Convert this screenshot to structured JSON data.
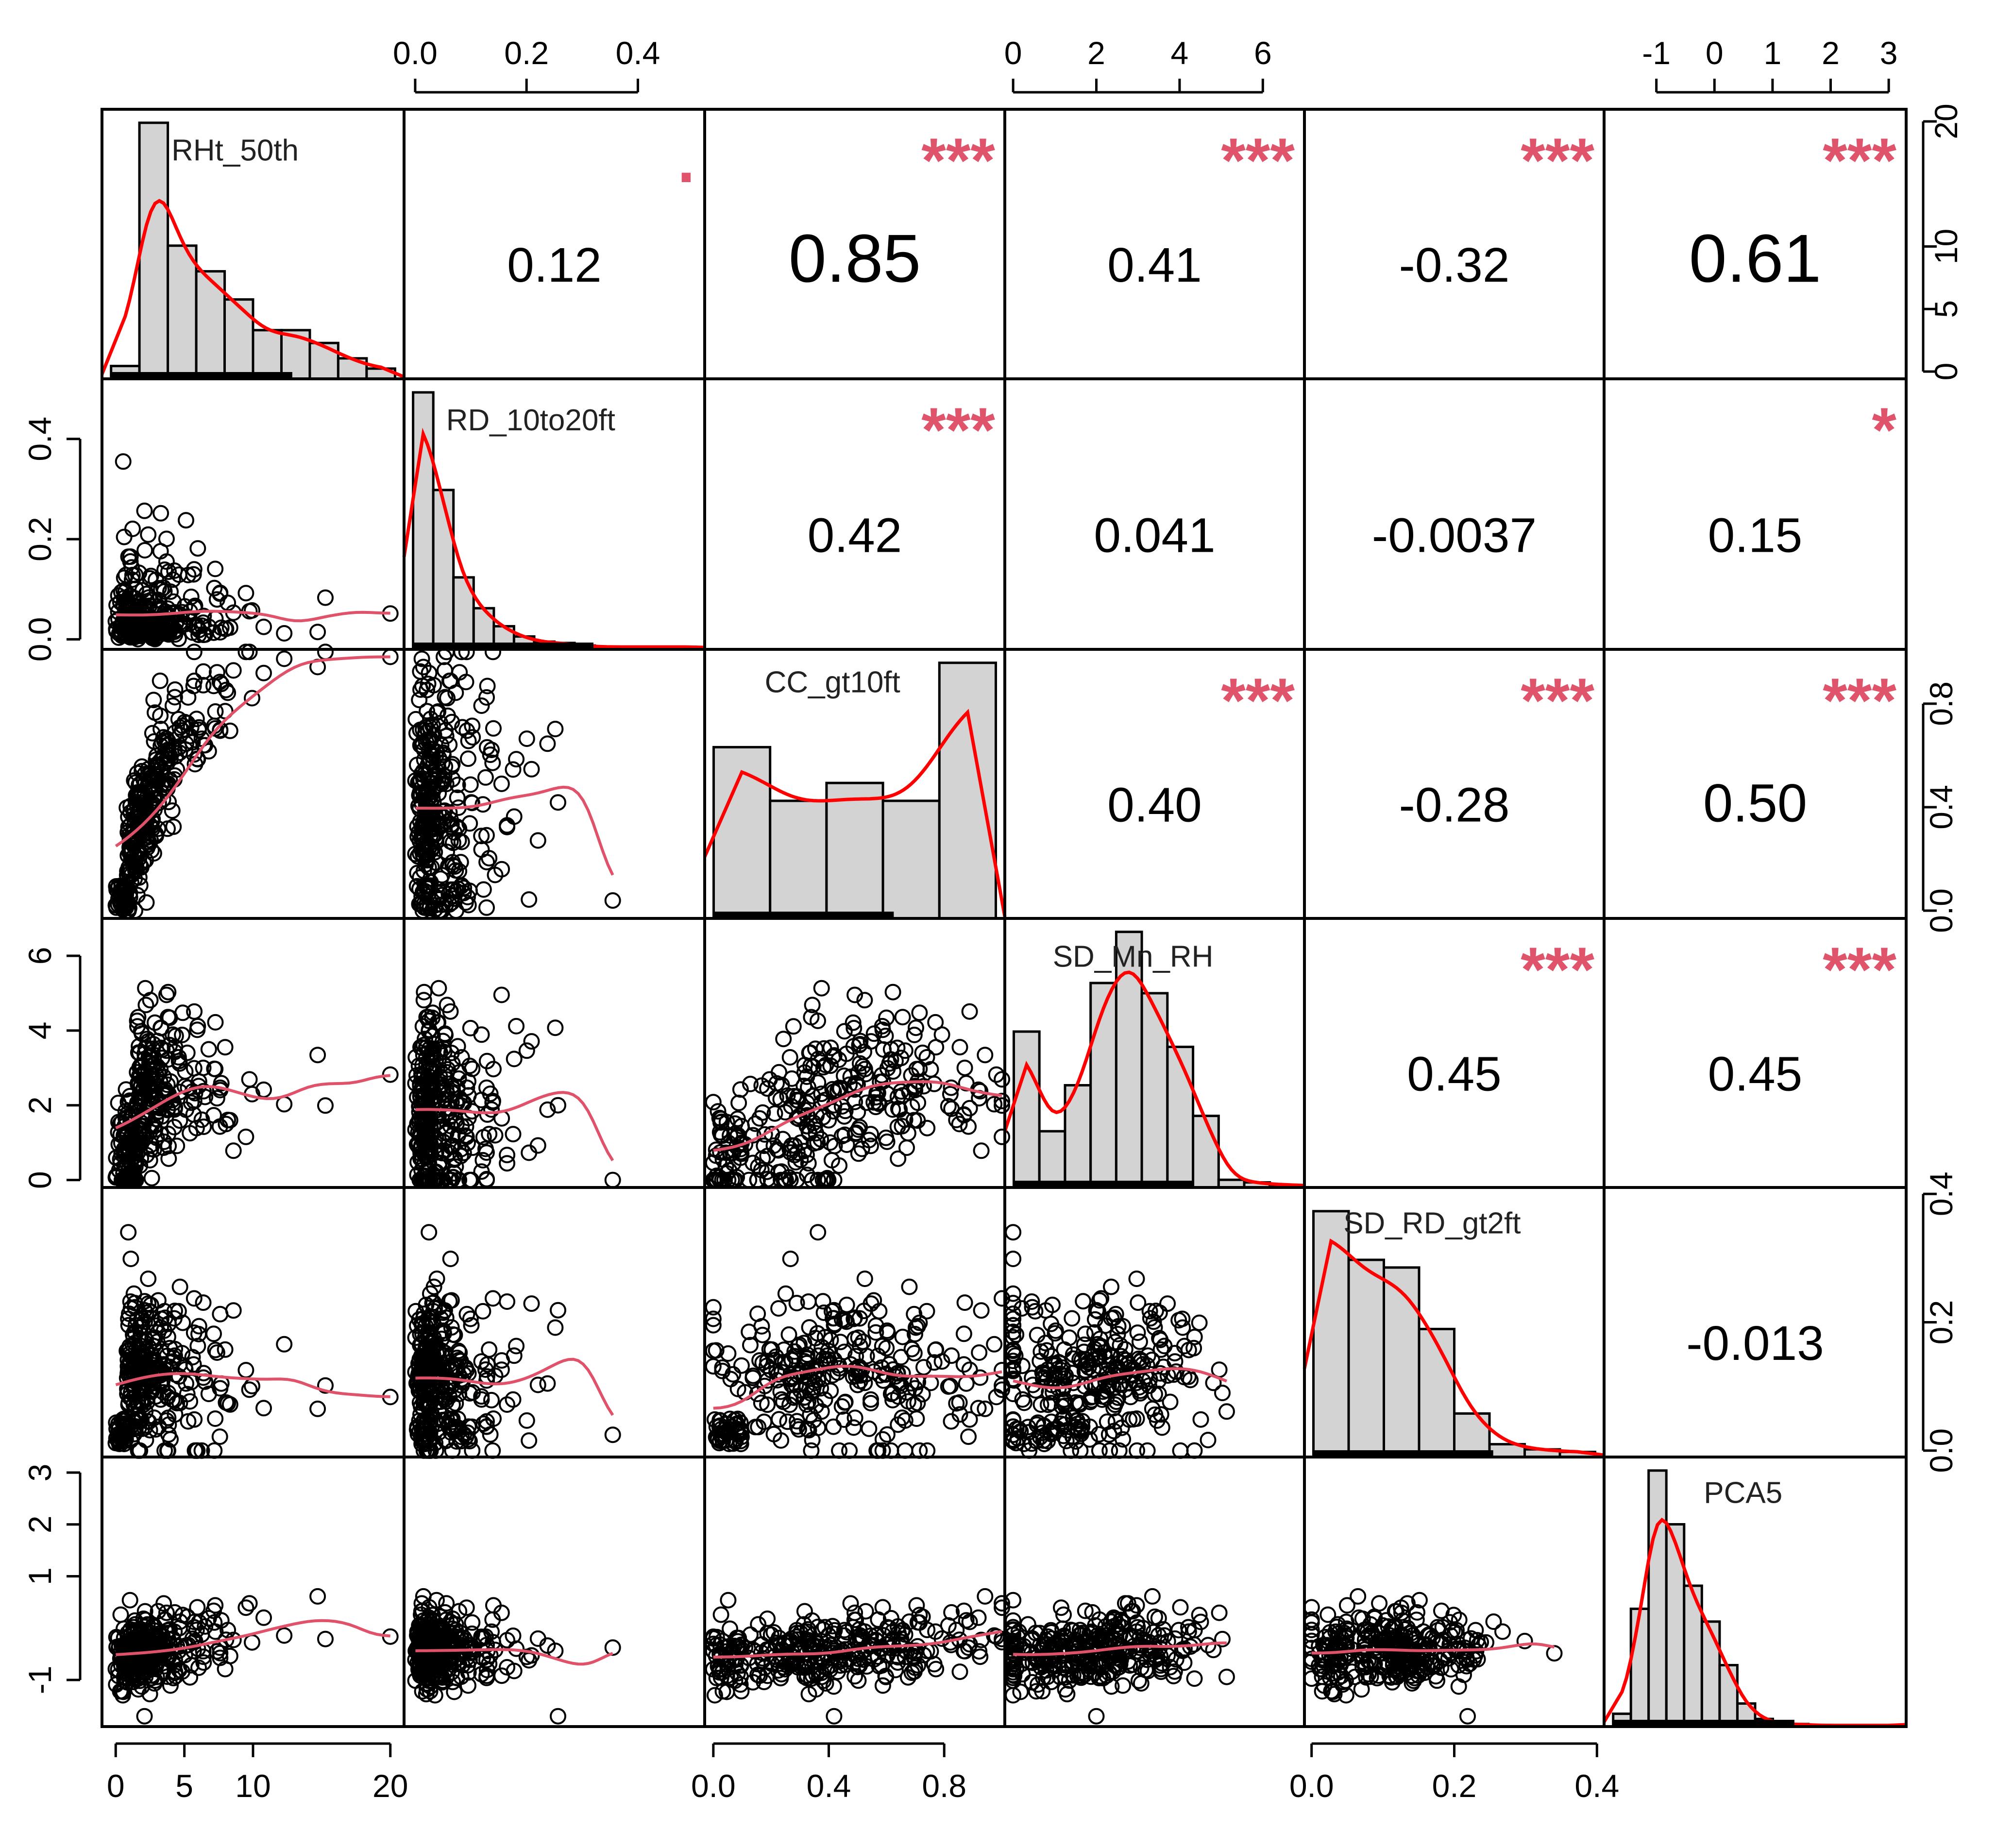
{
  "chart_data": {
    "type": "scatter-matrix",
    "title": "",
    "variables": [
      "RHt_50th",
      "RD_10to20ft",
      "CC_gt10ft",
      "SD_Mn_RH",
      "SD_RD_gt2ft",
      "PCA5"
    ],
    "ranges": [
      [
        -1,
        21
      ],
      [
        -0.02,
        0.52
      ],
      [
        -0.03,
        1.01
      ],
      [
        -0.2,
        7.0
      ],
      [
        -0.01,
        0.41
      ],
      [
        -1.9,
        3.3
      ]
    ],
    "ticks": {
      "bottom_col0": [
        "0",
        "5",
        "10",
        "20"
      ],
      "top_col1": [
        "0.0",
        "0.2",
        "0.4"
      ],
      "bottom_col2": [
        "0.0",
        "0.4",
        "0.8"
      ],
      "top_col3": [
        "0",
        "2",
        "4",
        "6"
      ],
      "bottom_col4": [
        "0.0",
        "0.2",
        "0.4"
      ],
      "top_col5": [
        "-1",
        "0",
        "1",
        "2",
        "3"
      ],
      "left_row1": [
        "0.0",
        "0.2",
        "0.4"
      ],
      "left_row3": [
        "0",
        "2",
        "4",
        "6"
      ],
      "left_row5": [
        "-1",
        "1",
        "2",
        "3"
      ],
      "right_row0": [
        "0",
        "5",
        "10",
        "20"
      ],
      "right_row2": [
        "0.0",
        "0.4",
        "0.8"
      ],
      "right_row4": [
        "0.0",
        "0.2",
        "0.4"
      ]
    },
    "histograms": [
      [
        0.05,
        1.0,
        0.52,
        0.42,
        0.31,
        0.19,
        0.19,
        0.14,
        0.08,
        0.04
      ],
      [
        1.0,
        0.62,
        0.28,
        0.16,
        0.09,
        0.05,
        0.03,
        0.025,
        0.015,
        0.01,
        0.01,
        0.01,
        0.01,
        0.01
      ],
      [
        0.67,
        0.46,
        0.53,
        0.46,
        1.0
      ],
      [
        0.61,
        0.22,
        0.4,
        0.8,
        1.0,
        0.76,
        0.55,
        0.28,
        0.03,
        0.02,
        0.01
      ],
      [
        0.96,
        0.77,
        0.74,
        0.5,
        0.17,
        0.05,
        0.03,
        0.02
      ],
      [
        0.05,
        0.46,
        1.0,
        0.79,
        0.55,
        0.41,
        0.24,
        0.09,
        0.03,
        0.01,
        0.01,
        0.005,
        0.005,
        0.005,
        0.005,
        0.005
      ]
    ],
    "correlations": [
      {
        "row": 0,
        "col": 1,
        "value": "0.12",
        "stars": "."
      },
      {
        "row": 0,
        "col": 2,
        "value": "0.85",
        "stars": "***"
      },
      {
        "row": 0,
        "col": 3,
        "value": "0.41",
        "stars": "***"
      },
      {
        "row": 0,
        "col": 4,
        "value": "-0.32",
        "stars": "***"
      },
      {
        "row": 0,
        "col": 5,
        "value": "0.61",
        "stars": "***"
      },
      {
        "row": 1,
        "col": 2,
        "value": "0.42",
        "stars": "***"
      },
      {
        "row": 1,
        "col": 3,
        "value": "0.041",
        "stars": ""
      },
      {
        "row": 1,
        "col": 4,
        "value": "-0.0037",
        "stars": ""
      },
      {
        "row": 1,
        "col": 5,
        "value": "0.15",
        "stars": "*"
      },
      {
        "row": 2,
        "col": 3,
        "value": "0.40",
        "stars": "***"
      },
      {
        "row": 2,
        "col": 4,
        "value": "-0.28",
        "stars": "***"
      },
      {
        "row": 2,
        "col": 5,
        "value": "0.50",
        "stars": "***"
      },
      {
        "row": 3,
        "col": 4,
        "value": "0.45",
        "stars": "***"
      },
      {
        "row": 3,
        "col": 5,
        "value": "0.45",
        "stars": "***"
      },
      {
        "row": 4,
        "col": 5,
        "value": "-0.013",
        "stars": ""
      }
    ],
    "colors": {
      "density": "#ff0000",
      "smooth": "#e0516a",
      "stars": "#df536b",
      "bar_fill": "#d3d3d3"
    }
  }
}
